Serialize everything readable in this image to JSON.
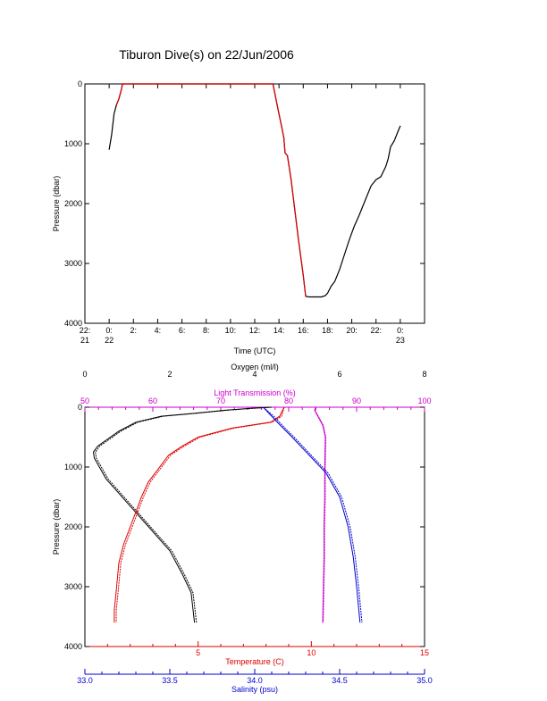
{
  "title": "Tiburon Dive(s) on 22/Jun/2006",
  "colors": {
    "black": "#000000",
    "red": "#dd0000",
    "blue": "#0000cc",
    "magenta": "#cc00cc"
  },
  "chart_data": [
    {
      "type": "line",
      "id": "dive-profile",
      "ylabel": "Pressure (dbar)",
      "xlabel": "Time (UTC)",
      "ylim": [
        4000,
        0
      ],
      "xlim": [
        -2,
        26
      ],
      "y_ticks": [
        "0",
        "1000",
        "2000",
        "3000",
        "4000"
      ],
      "x_ticks": [
        {
          "at": -2,
          "line1": "22:",
          "line2": "21"
        },
        {
          "at": 0,
          "line1": "0:",
          "line2": "22"
        },
        {
          "at": 2,
          "line1": "2:",
          "line2": ""
        },
        {
          "at": 4,
          "line1": "4:",
          "line2": ""
        },
        {
          "at": 6,
          "line1": "6:",
          "line2": ""
        },
        {
          "at": 8,
          "line1": "8:",
          "line2": ""
        },
        {
          "at": 10,
          "line1": "10:",
          "line2": ""
        },
        {
          "at": 12,
          "line1": "12:",
          "line2": ""
        },
        {
          "at": 14,
          "line1": "14:",
          "line2": ""
        },
        {
          "at": 16,
          "line1": "16:",
          "line2": ""
        },
        {
          "at": 18,
          "line1": "18:",
          "line2": ""
        },
        {
          "at": 20,
          "line1": "20:",
          "line2": ""
        },
        {
          "at": 22,
          "line1": "22:",
          "line2": ""
        },
        {
          "at": 24,
          "line1": "0:",
          "line2": "23"
        }
      ],
      "series": [
        {
          "color": "black",
          "x": [
            0.0,
            0.2,
            0.4,
            0.6,
            0.8,
            1.0,
            1.1,
            2.0,
            6.0,
            10.0,
            12.0,
            13.5,
            13.8,
            14.0,
            14.2,
            14.4,
            14.5,
            14.7,
            15.0,
            15.3,
            15.6,
            16.0,
            16.2,
            16.5,
            17.0,
            17.5,
            17.8,
            18.0,
            18.3,
            18.6,
            19.0,
            19.4,
            19.8,
            20.2,
            20.6,
            21.0,
            21.3,
            21.6,
            21.8,
            22.0,
            22.4,
            22.8,
            23.0,
            23.2,
            23.5,
            23.8,
            24.0
          ],
          "y": [
            1100,
            850,
            500,
            350,
            250,
            100,
            0,
            0,
            0,
            0,
            0,
            0,
            300,
            500,
            700,
            900,
            1150,
            1200,
            1600,
            2100,
            2600,
            3200,
            3550,
            3560,
            3560,
            3560,
            3540,
            3500,
            3380,
            3300,
            3100,
            2850,
            2600,
            2380,
            2200,
            2000,
            1850,
            1700,
            1650,
            1600,
            1550,
            1380,
            1250,
            1050,
            950,
            800,
            700
          ]
        },
        {
          "color": "red",
          "x": [
            0.6,
            0.8,
            1.0,
            1.1,
            2.0,
            6.0,
            10.0,
            12.0,
            13.5,
            13.8,
            14.0,
            14.2,
            14.4,
            14.5,
            14.7,
            15.0,
            15.3,
            15.6,
            16.0,
            16.2
          ],
          "y": [
            350,
            250,
            100,
            0,
            0,
            0,
            0,
            0,
            0,
            300,
            500,
            700,
            900,
            1150,
            1200,
            1600,
            2100,
            2600,
            3200,
            3550
          ]
        }
      ]
    },
    {
      "type": "line",
      "id": "water-profiles",
      "ylabel": "Pressure (dbar)",
      "ylim": [
        4000,
        0
      ],
      "y_ticks": [
        "0",
        "1000",
        "2000",
        "3000",
        "4000"
      ],
      "axes": {
        "oxygen": {
          "label": "Oxygen (ml/l)",
          "range": [
            0,
            8
          ],
          "ticks": [
            "0",
            "2",
            "4",
            "6",
            "8"
          ],
          "color": "black"
        },
        "transmission": {
          "label": "Light Transmission (%)",
          "range": [
            50,
            100
          ],
          "ticks": [
            "50",
            "60",
            "70",
            "80",
            "90",
            "100"
          ],
          "color": "magenta"
        },
        "temperature": {
          "label": "Temperature (C)",
          "range": [
            0,
            15
          ],
          "ticks": [
            "5",
            "10",
            "15"
          ],
          "tick_values": [
            5,
            10,
            15
          ],
          "color": "red"
        },
        "salinity": {
          "label": "Salinity (psu)",
          "range": [
            33.0,
            35.0
          ],
          "ticks": [
            "33.0",
            "33.5",
            "34.0",
            "34.5",
            "35.0"
          ],
          "color": "blue"
        }
      },
      "series": [
        {
          "axis": "oxygen",
          "color": "black",
          "x": [
            4.4,
            3.9,
            3.3,
            2.6,
            1.8,
            1.2,
            0.8,
            0.5,
            0.3,
            0.2,
            0.22,
            0.5,
            1.0,
            1.5,
            2.0,
            2.3,
            2.5,
            2.55,
            2.58
          ],
          "y": [
            0,
            20,
            50,
            100,
            150,
            250,
            400,
            550,
            650,
            750,
            850,
            1200,
            1600,
            2000,
            2400,
            2800,
            3100,
            3400,
            3600
          ]
        },
        {
          "axis": "transmission",
          "color": "magenta",
          "x": [
            84.0,
            83.8,
            85.0,
            85.4,
            85.3,
            85.3,
            85.2,
            85.2,
            85.1,
            85.0
          ],
          "y": [
            0,
            50,
            300,
            500,
            1000,
            1500,
            2000,
            2500,
            3000,
            3600
          ]
        },
        {
          "axis": "temperature",
          "color": "red",
          "x": [
            8.8,
            8.6,
            8.2,
            6.5,
            5.0,
            4.3,
            3.7,
            3.2,
            2.8,
            2.5,
            2.3,
            2.0,
            1.7,
            1.5,
            1.4,
            1.3,
            1.3
          ],
          "y": [
            0,
            150,
            250,
            350,
            500,
            650,
            800,
            1050,
            1250,
            1500,
            1700,
            2000,
            2300,
            2600,
            3000,
            3400,
            3600
          ]
        },
        {
          "axis": "salinity",
          "color": "blue",
          "x": [
            34.05,
            34.1,
            34.15,
            34.22,
            34.32,
            34.42,
            34.5,
            34.55,
            34.58,
            34.6,
            34.61,
            34.62
          ],
          "y": [
            0,
            150,
            300,
            500,
            800,
            1100,
            1500,
            2000,
            2500,
            3000,
            3300,
            3600
          ]
        }
      ]
    }
  ]
}
